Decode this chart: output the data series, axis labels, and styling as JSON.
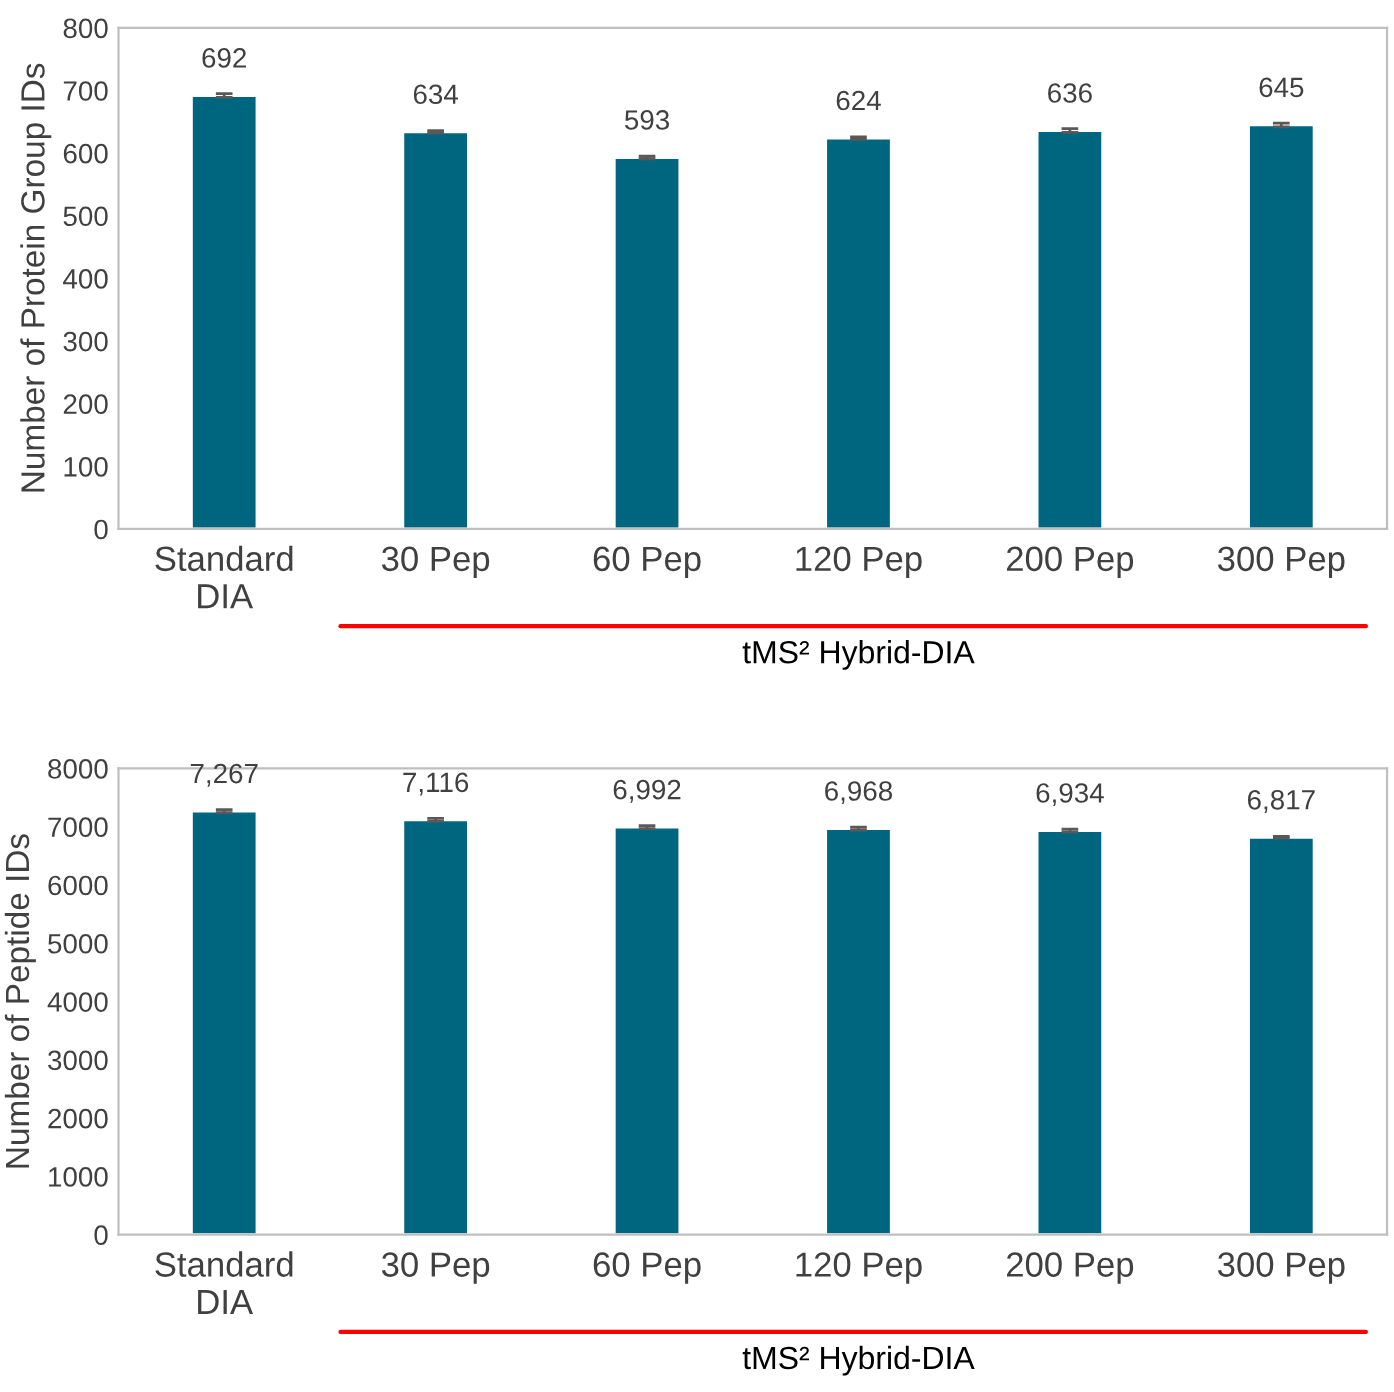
{
  "chart_data": [
    {
      "type": "bar",
      "ylabel": "Number of Protein Group IDs",
      "categories": [
        "Standard\nDIA",
        "30 Pep",
        "60 Pep",
        "120 Pep",
        "200 Pep",
        "300 Pep"
      ],
      "values": [
        692,
        634,
        593,
        624,
        636,
        645
      ],
      "errors": [
        3,
        2,
        2,
        2,
        3,
        3
      ],
      "color": "#006680",
      "data_labels": true,
      "ylim": [
        0,
        800
      ],
      "yticks": [
        0,
        100,
        200,
        300,
        400,
        500,
        600,
        700,
        800
      ],
      "grid": false,
      "legend": false,
      "annotations": [
        "tMS² Hybrid-DIA"
      ]
    },
    {
      "type": "bar",
      "ylabel": "Number of Peptide IDs",
      "categories": [
        "Standard\nDIA",
        "30 Pep",
        "60 Pep",
        "120 Pep",
        "200 Pep",
        "300 Pep"
      ],
      "values": [
        7267,
        7116,
        6992,
        6968,
        6934,
        6817
      ],
      "errors": [
        25,
        25,
        25,
        25,
        25,
        15
      ],
      "color": "#006680",
      "value_labels": [
        "7,267",
        "7,116",
        "6,992",
        "6,968",
        "6,934",
        "6,817"
      ],
      "ylim": [
        0,
        8000
      ],
      "yticks": [
        0,
        1000,
        2000,
        3000,
        4000,
        5000,
        6000,
        7000,
        8000
      ],
      "grid": false,
      "legend": false,
      "annotations": [
        "tMS² Hybrid-DIA"
      ]
    }
  ]
}
